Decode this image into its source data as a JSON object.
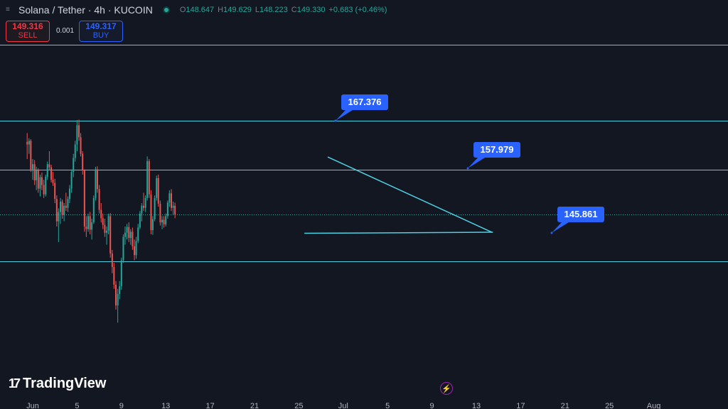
{
  "header": {
    "symbol": "Solana / Tether · 4h · KUCOIN",
    "ohlc": {
      "o_label": "O",
      "o": "148.647",
      "h_label": "H",
      "h": "149.629",
      "l_label": "L",
      "l": "148.223",
      "c_label": "C",
      "c": "149.330",
      "change": "+0.683 (+0.46%)"
    }
  },
  "trade": {
    "sell_price": "149.316",
    "sell_label": "SELL",
    "spread": "0.001",
    "buy_price": "149.317",
    "buy_label": "BUY"
  },
  "branding": {
    "logo_text": "TradingView"
  },
  "colors": {
    "background": "#131722",
    "up": "#26a69a",
    "down": "#ef5350",
    "line": "#4dd0e1",
    "callout": "#2962ff",
    "label_text": "#ffffff"
  },
  "chart_data": {
    "type": "candlestick",
    "x_ticks": [
      "Jun",
      "5",
      "9",
      "13",
      "17",
      "21",
      "25",
      "Jul",
      "5",
      "9",
      "13",
      "17",
      "21",
      "25",
      "Aug"
    ],
    "horizontal_lines": [
      182,
      167.376,
      157.979,
      140.3
    ],
    "current_price": 149.33,
    "labels": [
      {
        "text": "167.376",
        "value": 167.376
      },
      {
        "text": "157.979",
        "value": 157.979
      },
      {
        "text": "145.861",
        "value": 145.861
      }
    ],
    "trend_lines": [
      {
        "name": "upper",
        "from": [
          26.6,
          160.4
        ],
        "to": [
          41.4,
          145.9
        ]
      },
      {
        "name": "lower",
        "from": [
          24.5,
          145.7
        ],
        "to": [
          41.5,
          145.9
        ]
      }
    ],
    "candles": [
      {
        "t": -0.5,
        "o": 163.3,
        "h": 165.0,
        "l": 160.0,
        "c": 162.8
      },
      {
        "t": -0.33,
        "o": 162.8,
        "h": 164.0,
        "l": 161.0,
        "c": 163.5
      },
      {
        "t": -0.17,
        "o": 163.5,
        "h": 163.8,
        "l": 157.5,
        "c": 158.0
      },
      {
        "t": 0.0,
        "o": 158.0,
        "h": 160.0,
        "l": 156.0,
        "c": 159.0
      },
      {
        "t": 0.17,
        "o": 159.0,
        "h": 159.8,
        "l": 155.0,
        "c": 155.9
      },
      {
        "t": 0.33,
        "o": 155.9,
        "h": 158.5,
        "l": 154.0,
        "c": 157.8
      },
      {
        "t": 0.5,
        "o": 157.8,
        "h": 158.2,
        "l": 153.5,
        "c": 154.3
      },
      {
        "t": 0.67,
        "o": 154.3,
        "h": 157.0,
        "l": 152.8,
        "c": 156.5
      },
      {
        "t": 0.83,
        "o": 156.5,
        "h": 157.4,
        "l": 154.0,
        "c": 155.0
      },
      {
        "t": 1.0,
        "o": 155.0,
        "h": 156.0,
        "l": 152.5,
        "c": 153.2
      },
      {
        "t": 1.17,
        "o": 153.2,
        "h": 157.0,
        "l": 152.8,
        "c": 156.6
      },
      {
        "t": 1.33,
        "o": 156.6,
        "h": 159.5,
        "l": 156.0,
        "c": 159.0
      },
      {
        "t": 1.5,
        "o": 159.0,
        "h": 161.5,
        "l": 157.8,
        "c": 158.4
      },
      {
        "t": 1.67,
        "o": 158.4,
        "h": 158.9,
        "l": 155.5,
        "c": 156.0
      },
      {
        "t": 1.83,
        "o": 156.0,
        "h": 157.5,
        "l": 154.8,
        "c": 155.4
      },
      {
        "t": 2.0,
        "o": 155.4,
        "h": 156.2,
        "l": 151.5,
        "c": 152.3
      },
      {
        "t": 2.17,
        "o": 152.3,
        "h": 153.0,
        "l": 147.0,
        "c": 148.0
      },
      {
        "t": 2.33,
        "o": 148.0,
        "h": 150.5,
        "l": 144.0,
        "c": 149.8
      },
      {
        "t": 2.5,
        "o": 149.8,
        "h": 152.5,
        "l": 147.5,
        "c": 151.8
      },
      {
        "t": 2.67,
        "o": 151.8,
        "h": 152.2,
        "l": 148.5,
        "c": 149.2
      },
      {
        "t": 2.83,
        "o": 149.2,
        "h": 151.5,
        "l": 148.0,
        "c": 151.0
      },
      {
        "t": 3.0,
        "o": 151.0,
        "h": 153.5,
        "l": 150.0,
        "c": 150.6
      },
      {
        "t": 3.17,
        "o": 150.6,
        "h": 152.8,
        "l": 149.8,
        "c": 152.3
      },
      {
        "t": 3.33,
        "o": 152.3,
        "h": 155.0,
        "l": 151.5,
        "c": 154.3
      },
      {
        "t": 3.5,
        "o": 154.3,
        "h": 158.0,
        "l": 153.5,
        "c": 157.5
      },
      {
        "t": 3.67,
        "o": 157.5,
        "h": 161.0,
        "l": 156.5,
        "c": 160.2
      },
      {
        "t": 3.83,
        "o": 160.2,
        "h": 163.5,
        "l": 159.5,
        "c": 162.8
      },
      {
        "t": 4.0,
        "o": 162.8,
        "h": 167.5,
        "l": 161.5,
        "c": 166.5
      },
      {
        "t": 4.17,
        "o": 166.5,
        "h": 167.6,
        "l": 163.5,
        "c": 164.2
      },
      {
        "t": 4.33,
        "o": 164.2,
        "h": 165.0,
        "l": 160.5,
        "c": 161.0
      },
      {
        "t": 4.5,
        "o": 161.0,
        "h": 161.5,
        "l": 157.0,
        "c": 157.8
      },
      {
        "t": 4.67,
        "o": 157.8,
        "h": 158.0,
        "l": 146.0,
        "c": 147.0
      },
      {
        "t": 4.83,
        "o": 147.0,
        "h": 149.0,
        "l": 145.0,
        "c": 146.5
      },
      {
        "t": 5.0,
        "o": 146.5,
        "h": 149.5,
        "l": 146.0,
        "c": 149.0
      },
      {
        "t": 5.17,
        "o": 149.0,
        "h": 149.8,
        "l": 145.5,
        "c": 146.4
      },
      {
        "t": 5.33,
        "o": 146.4,
        "h": 148.5,
        "l": 144.5,
        "c": 147.8
      },
      {
        "t": 5.5,
        "o": 147.8,
        "h": 153.0,
        "l": 147.5,
        "c": 152.5
      },
      {
        "t": 5.67,
        "o": 152.5,
        "h": 158.5,
        "l": 152.0,
        "c": 158.0
      },
      {
        "t": 5.83,
        "o": 158.0,
        "h": 158.6,
        "l": 153.5,
        "c": 154.2
      },
      {
        "t": 6.0,
        "o": 154.2,
        "h": 155.0,
        "l": 149.5,
        "c": 150.2
      },
      {
        "t": 6.17,
        "o": 150.2,
        "h": 151.5,
        "l": 147.8,
        "c": 148.6
      },
      {
        "t": 6.33,
        "o": 148.6,
        "h": 149.5,
        "l": 146.5,
        "c": 147.3
      },
      {
        "t": 6.5,
        "o": 147.3,
        "h": 148.5,
        "l": 145.0,
        "c": 145.8
      },
      {
        "t": 6.67,
        "o": 145.8,
        "h": 147.0,
        "l": 143.5,
        "c": 146.2
      },
      {
        "t": 6.83,
        "o": 146.2,
        "h": 149.5,
        "l": 145.5,
        "c": 149.0
      },
      {
        "t": 7.0,
        "o": 149.0,
        "h": 149.6,
        "l": 141.0,
        "c": 141.8
      },
      {
        "t": 7.17,
        "o": 141.8,
        "h": 142.5,
        "l": 138.0,
        "c": 139.2
      },
      {
        "t": 7.33,
        "o": 139.2,
        "h": 140.0,
        "l": 135.0,
        "c": 135.8
      },
      {
        "t": 7.5,
        "o": 135.8,
        "h": 136.5,
        "l": 131.0,
        "c": 131.8
      },
      {
        "t": 7.67,
        "o": 131.8,
        "h": 135.0,
        "l": 128.5,
        "c": 134.0
      },
      {
        "t": 7.83,
        "o": 134.0,
        "h": 136.5,
        "l": 133.0,
        "c": 135.5
      },
      {
        "t": 8.0,
        "o": 135.5,
        "h": 141.0,
        "l": 134.8,
        "c": 140.5
      },
      {
        "t": 8.17,
        "o": 140.5,
        "h": 145.5,
        "l": 140.0,
        "c": 145.0
      },
      {
        "t": 8.33,
        "o": 145.0,
        "h": 147.0,
        "l": 143.5,
        "c": 145.8
      },
      {
        "t": 8.5,
        "o": 145.8,
        "h": 147.5,
        "l": 144.5,
        "c": 146.9
      },
      {
        "t": 8.67,
        "o": 146.9,
        "h": 147.8,
        "l": 144.0,
        "c": 144.8
      },
      {
        "t": 8.83,
        "o": 144.8,
        "h": 146.5,
        "l": 143.5,
        "c": 146.0
      },
      {
        "t": 9.0,
        "o": 146.0,
        "h": 146.8,
        "l": 142.5,
        "c": 143.2
      },
      {
        "t": 9.17,
        "o": 143.2,
        "h": 144.5,
        "l": 140.5,
        "c": 141.5
      },
      {
        "t": 9.33,
        "o": 141.5,
        "h": 145.0,
        "l": 140.8,
        "c": 144.2
      },
      {
        "t": 9.5,
        "o": 144.2,
        "h": 147.5,
        "l": 143.8,
        "c": 146.8
      },
      {
        "t": 9.67,
        "o": 146.8,
        "h": 150.0,
        "l": 146.5,
        "c": 149.5
      },
      {
        "t": 9.83,
        "o": 149.5,
        "h": 151.5,
        "l": 148.0,
        "c": 151.0
      },
      {
        "t": 10.0,
        "o": 151.0,
        "h": 153.5,
        "l": 150.0,
        "c": 150.6
      },
      {
        "t": 10.17,
        "o": 150.6,
        "h": 153.0,
        "l": 149.8,
        "c": 152.5
      },
      {
        "t": 10.33,
        "o": 152.5,
        "h": 160.5,
        "l": 152.0,
        "c": 159.6
      },
      {
        "t": 10.5,
        "o": 159.6,
        "h": 160.0,
        "l": 152.5,
        "c": 153.2
      },
      {
        "t": 10.67,
        "o": 153.2,
        "h": 154.0,
        "l": 145.5,
        "c": 146.3
      },
      {
        "t": 10.83,
        "o": 146.3,
        "h": 149.0,
        "l": 145.4,
        "c": 148.4
      },
      {
        "t": 11.0,
        "o": 148.4,
        "h": 153.0,
        "l": 148.0,
        "c": 152.5
      },
      {
        "t": 11.17,
        "o": 152.5,
        "h": 156.8,
        "l": 152.0,
        "c": 156.3
      },
      {
        "t": 11.33,
        "o": 156.3,
        "h": 157.0,
        "l": 150.8,
        "c": 151.4
      },
      {
        "t": 11.5,
        "o": 151.4,
        "h": 152.0,
        "l": 147.2,
        "c": 147.8
      },
      {
        "t": 11.67,
        "o": 147.8,
        "h": 149.0,
        "l": 146.5,
        "c": 148.3
      },
      {
        "t": 11.83,
        "o": 148.3,
        "h": 149.0,
        "l": 146.8,
        "c": 147.4
      },
      {
        "t": 12.0,
        "o": 147.4,
        "h": 149.5,
        "l": 147.0,
        "c": 149.0
      },
      {
        "t": 12.17,
        "o": 149.0,
        "h": 152.0,
        "l": 148.5,
        "c": 151.6
      },
      {
        "t": 12.33,
        "o": 151.6,
        "h": 154.0,
        "l": 150.8,
        "c": 153.4
      },
      {
        "t": 12.5,
        "o": 153.4,
        "h": 154.2,
        "l": 150.0,
        "c": 150.6
      },
      {
        "t": 12.67,
        "o": 150.6,
        "h": 151.8,
        "l": 149.3,
        "c": 151.0
      },
      {
        "t": 12.83,
        "o": 151.0,
        "h": 151.6,
        "l": 148.6,
        "c": 149.3
      }
    ]
  }
}
